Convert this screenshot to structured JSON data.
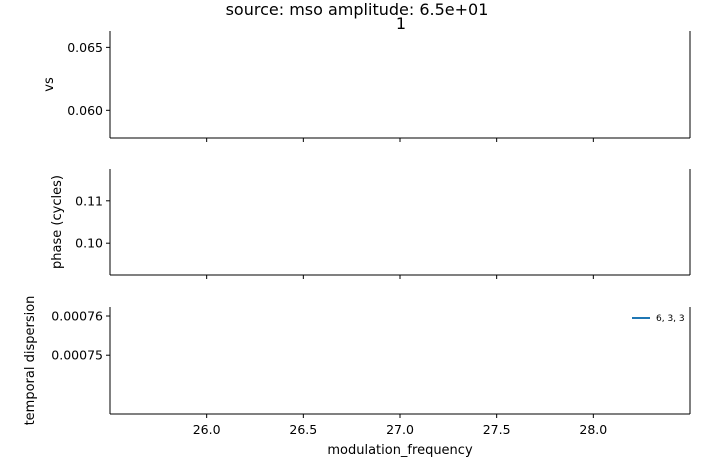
{
  "figure": {
    "suptitle": "source: mso amplitude: 6.5e+01",
    "panel_title": "1"
  },
  "chart_data": {
    "type": "line",
    "shared_x": {
      "label": "modulation_frequency",
      "lim": [
        25.5,
        28.5
      ],
      "ticks": [
        26.0,
        26.5,
        27.0,
        27.5,
        28.0
      ],
      "tick_labels": [
        "26.0",
        "26.5",
        "27.0",
        "27.5",
        "28.0"
      ]
    },
    "panels": [
      {
        "ylabel": "vs",
        "ylim": [
          0.0578,
          0.0663
        ],
        "yticks": [
          0.06,
          0.065
        ],
        "ytick_labels": [
          "0.060",
          "0.065"
        ],
        "series": []
      },
      {
        "ylabel": "phase (cycles)",
        "ylim": [
          0.0925,
          0.1175
        ],
        "yticks": [
          0.1,
          0.11
        ],
        "ytick_labels": [
          "0.10",
          "0.11"
        ],
        "series": []
      },
      {
        "ylabel": "temporal dispersion",
        "ylim": [
          0.000735,
          0.0007623
        ],
        "yticks": [
          0.00075,
          0.00076
        ],
        "ytick_labels": [
          "0.00075",
          "0.00076"
        ],
        "legend": {
          "position": "upper right",
          "entries": [
            {
              "label": "6, 3, 3",
              "color": "#1f77b4"
            }
          ]
        },
        "series": [
          {
            "name": "6, 3, 3",
            "color": "#1f77b4",
            "x": [],
            "y": []
          }
        ]
      }
    ]
  }
}
